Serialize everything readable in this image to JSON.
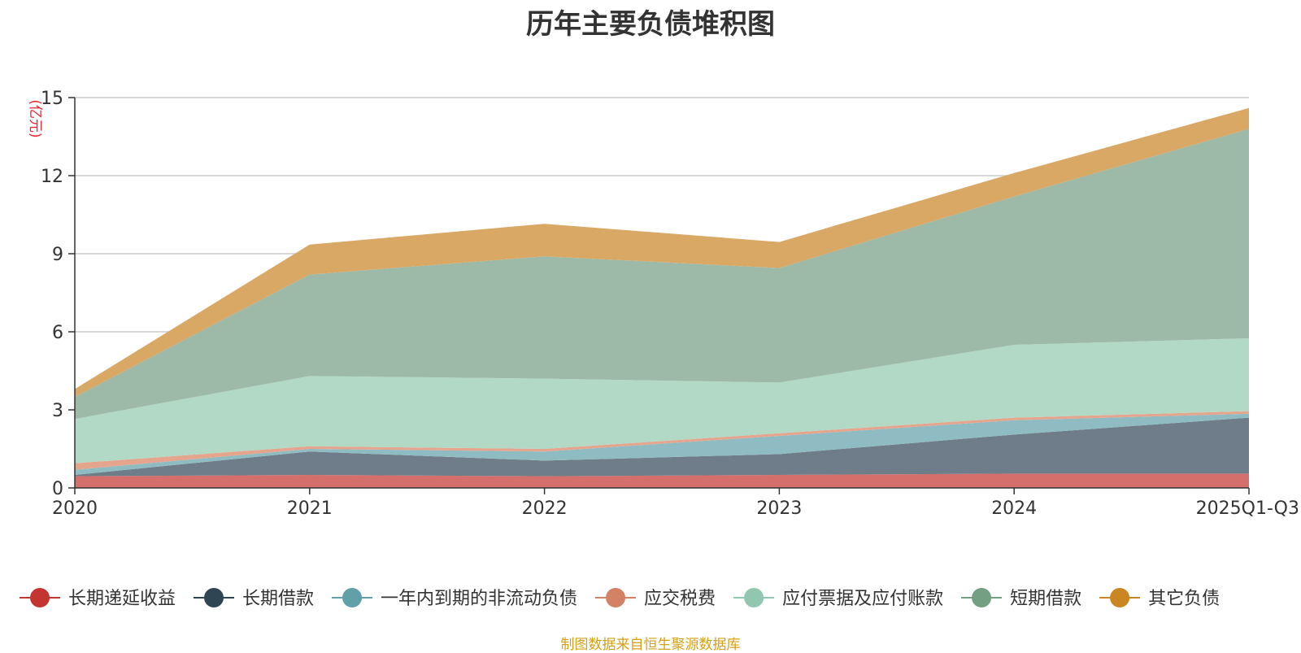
{
  "chart_data": {
    "type": "area",
    "stacked": true,
    "title": "历年主要负债堆积图",
    "unit_label": "(亿元)",
    "xlabel": "",
    "ylabel": "(亿元)",
    "categories": [
      "2020",
      "2021",
      "2022",
      "2023",
      "2024",
      "2025Q1-Q3"
    ],
    "ylim": [
      0,
      15
    ],
    "yticks": [
      0,
      3,
      6,
      9,
      12,
      15
    ],
    "grid": true,
    "legend_position": "bottom",
    "series": [
      {
        "name": "长期递延收益",
        "color": "#c23531",
        "fill": "#d46f6c",
        "values": [
          0.45,
          0.5,
          0.45,
          0.5,
          0.55,
          0.55
        ]
      },
      {
        "name": "长期借款",
        "color": "#2f4554",
        "fill": "#6e7d89",
        "values": [
          0.05,
          0.9,
          0.6,
          0.8,
          1.5,
          2.15
        ]
      },
      {
        "name": "一年内到期的非流动负债",
        "color": "#61a0a8",
        "fill": "#8fbcc2",
        "values": [
          0.2,
          0.1,
          0.35,
          0.7,
          0.55,
          0.15
        ]
      },
      {
        "name": "应交税费",
        "color": "#d48265",
        "fill": "#e5a48c",
        "values": [
          0.25,
          0.1,
          0.1,
          0.1,
          0.1,
          0.1
        ]
      },
      {
        "name": "应付票据及应付账款",
        "color": "#91c7ae",
        "fill": "#b2d8c6",
        "values": [
          1.7,
          2.7,
          2.7,
          1.95,
          2.8,
          2.8
        ]
      },
      {
        "name": "短期借款",
        "color": "#749f83",
        "fill": "#9db9a7",
        "values": [
          0.85,
          3.9,
          4.7,
          4.4,
          5.7,
          8.05
        ]
      },
      {
        "name": "其它负债",
        "color": "#ca8622",
        "fill": "#d9a865",
        "values": [
          0.3,
          1.15,
          1.25,
          1.0,
          0.9,
          0.8
        ]
      }
    ]
  },
  "footer": {
    "source": "制图数据来自恒生聚源数据库"
  }
}
